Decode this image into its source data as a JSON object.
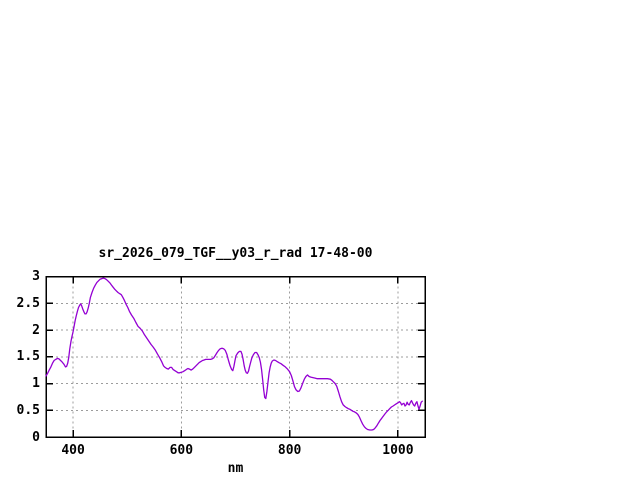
{
  "page": {
    "background_color": "#ffffff",
    "text_color": "#000000"
  },
  "chart_data": {
    "type": "line",
    "title": "sr_2026_079_TGF__y03_r_rad 17-48-00",
    "xlabel": "nm",
    "ylabel": "",
    "xlim": [
      350,
      1050
    ],
    "ylim": [
      0,
      3
    ],
    "x_ticks": [
      400,
      600,
      800,
      1000
    ],
    "y_ticks": [
      0,
      0.5,
      1,
      1.5,
      2,
      2.5,
      3
    ],
    "grid": true,
    "legend_position": "none",
    "colors": {
      "line": "#9400d3",
      "grid": "#9c9c9c",
      "border": "#000000",
      "background": "#ffffff"
    },
    "series": [
      {
        "name": "sr_2026_079_TGF__y03_r_rad",
        "color": "#9400d3",
        "points": [
          [
            350,
            1.14
          ],
          [
            353,
            1.19
          ],
          [
            356,
            1.25
          ],
          [
            359,
            1.31
          ],
          [
            362,
            1.38
          ],
          [
            365,
            1.43
          ],
          [
            368,
            1.45
          ],
          [
            371,
            1.47
          ],
          [
            374,
            1.46
          ],
          [
            377,
            1.43
          ],
          [
            380,
            1.4
          ],
          [
            383,
            1.36
          ],
          [
            386,
            1.31
          ],
          [
            388,
            1.32
          ],
          [
            390,
            1.38
          ],
          [
            392,
            1.48
          ],
          [
            394,
            1.65
          ],
          [
            396,
            1.78
          ],
          [
            398,
            1.88
          ],
          [
            400,
            1.97
          ],
          [
            402,
            2.08
          ],
          [
            404,
            2.18
          ],
          [
            406,
            2.27
          ],
          [
            408,
            2.35
          ],
          [
            410,
            2.42
          ],
          [
            412,
            2.46
          ],
          [
            414,
            2.49
          ],
          [
            416,
            2.45
          ],
          [
            418,
            2.39
          ],
          [
            420,
            2.34
          ],
          [
            422,
            2.3
          ],
          [
            424,
            2.3
          ],
          [
            426,
            2.34
          ],
          [
            428,
            2.41
          ],
          [
            430,
            2.5
          ],
          [
            432,
            2.61
          ],
          [
            435,
            2.7
          ],
          [
            438,
            2.78
          ],
          [
            441,
            2.84
          ],
          [
            444,
            2.89
          ],
          [
            447,
            2.92
          ],
          [
            450,
            2.95
          ],
          [
            453,
            2.96
          ],
          [
            456,
            2.97
          ],
          [
            459,
            2.96
          ],
          [
            462,
            2.94
          ],
          [
            465,
            2.91
          ],
          [
            468,
            2.88
          ],
          [
            471,
            2.84
          ],
          [
            474,
            2.8
          ],
          [
            477,
            2.76
          ],
          [
            480,
            2.73
          ],
          [
            483,
            2.7
          ],
          [
            486,
            2.68
          ],
          [
            489,
            2.66
          ],
          [
            492,
            2.61
          ],
          [
            495,
            2.55
          ],
          [
            498,
            2.48
          ],
          [
            501,
            2.42
          ],
          [
            504,
            2.35
          ],
          [
            508,
            2.28
          ],
          [
            512,
            2.22
          ],
          [
            516,
            2.14
          ],
          [
            520,
            2.07
          ],
          [
            524,
            2.03
          ],
          [
            528,
            1.98
          ],
          [
            532,
            1.91
          ],
          [
            536,
            1.85
          ],
          [
            540,
            1.79
          ],
          [
            544,
            1.73
          ],
          [
            548,
            1.68
          ],
          [
            552,
            1.62
          ],
          [
            556,
            1.55
          ],
          [
            560,
            1.48
          ],
          [
            564,
            1.4
          ],
          [
            567,
            1.33
          ],
          [
            570,
            1.3
          ],
          [
            573,
            1.28
          ],
          [
            576,
            1.27
          ],
          [
            579,
            1.3
          ],
          [
            582,
            1.3
          ],
          [
            585,
            1.26
          ],
          [
            588,
            1.24
          ],
          [
            591,
            1.22
          ],
          [
            594,
            1.2
          ],
          [
            597,
            1.2
          ],
          [
            600,
            1.21
          ],
          [
            603,
            1.22
          ],
          [
            606,
            1.24
          ],
          [
            609,
            1.26
          ],
          [
            612,
            1.28
          ],
          [
            615,
            1.27
          ],
          [
            618,
            1.25
          ],
          [
            621,
            1.27
          ],
          [
            624,
            1.3
          ],
          [
            627,
            1.33
          ],
          [
            630,
            1.36
          ],
          [
            633,
            1.39
          ],
          [
            636,
            1.41
          ],
          [
            639,
            1.43
          ],
          [
            642,
            1.44
          ],
          [
            645,
            1.45
          ],
          [
            648,
            1.45
          ],
          [
            651,
            1.45
          ],
          [
            654,
            1.45
          ],
          [
            657,
            1.46
          ],
          [
            660,
            1.48
          ],
          [
            663,
            1.53
          ],
          [
            666,
            1.58
          ],
          [
            669,
            1.62
          ],
          [
            672,
            1.65
          ],
          [
            675,
            1.66
          ],
          [
            678,
            1.65
          ],
          [
            681,
            1.62
          ],
          [
            684,
            1.55
          ],
          [
            687,
            1.43
          ],
          [
            690,
            1.33
          ],
          [
            693,
            1.26
          ],
          [
            695,
            1.24
          ],
          [
            697,
            1.32
          ],
          [
            699,
            1.43
          ],
          [
            701,
            1.52
          ],
          [
            704,
            1.57
          ],
          [
            707,
            1.6
          ],
          [
            710,
            1.6
          ],
          [
            712,
            1.55
          ],
          [
            714,
            1.45
          ],
          [
            716,
            1.33
          ],
          [
            718,
            1.25
          ],
          [
            720,
            1.2
          ],
          [
            722,
            1.19
          ],
          [
            724,
            1.23
          ],
          [
            726,
            1.32
          ],
          [
            728,
            1.4
          ],
          [
            730,
            1.47
          ],
          [
            733,
            1.54
          ],
          [
            736,
            1.58
          ],
          [
            739,
            1.58
          ],
          [
            742,
            1.53
          ],
          [
            744,
            1.48
          ],
          [
            746,
            1.4
          ],
          [
            748,
            1.27
          ],
          [
            750,
            1.08
          ],
          [
            752,
            0.88
          ],
          [
            754,
            0.74
          ],
          [
            756,
            0.72
          ],
          [
            758,
            0.85
          ],
          [
            760,
            1.03
          ],
          [
            762,
            1.2
          ],
          [
            764,
            1.31
          ],
          [
            766,
            1.38
          ],
          [
            768,
            1.42
          ],
          [
            771,
            1.44
          ],
          [
            774,
            1.43
          ],
          [
            777,
            1.41
          ],
          [
            780,
            1.39
          ],
          [
            784,
            1.37
          ],
          [
            788,
            1.34
          ],
          [
            792,
            1.31
          ],
          [
            796,
            1.27
          ],
          [
            800,
            1.22
          ],
          [
            803,
            1.15
          ],
          [
            806,
            1.05
          ],
          [
            809,
            0.94
          ],
          [
            812,
            0.88
          ],
          [
            815,
            0.85
          ],
          [
            818,
            0.86
          ],
          [
            821,
            0.92
          ],
          [
            824,
            1.0
          ],
          [
            827,
            1.08
          ],
          [
            830,
            1.13
          ],
          [
            833,
            1.16
          ],
          [
            836,
            1.13
          ],
          [
            839,
            1.12
          ],
          [
            843,
            1.11
          ],
          [
            847,
            1.1
          ],
          [
            851,
            1.09
          ],
          [
            855,
            1.09
          ],
          [
            860,
            1.09
          ],
          [
            865,
            1.09
          ],
          [
            870,
            1.09
          ],
          [
            875,
            1.08
          ],
          [
            878,
            1.06
          ],
          [
            881,
            1.03
          ],
          [
            884,
            1.0
          ],
          [
            887,
            0.95
          ],
          [
            890,
            0.85
          ],
          [
            893,
            0.75
          ],
          [
            896,
            0.66
          ],
          [
            899,
            0.6
          ],
          [
            902,
            0.57
          ],
          [
            905,
            0.55
          ],
          [
            908,
            0.53
          ],
          [
            911,
            0.52
          ],
          [
            914,
            0.5
          ],
          [
            917,
            0.48
          ],
          [
            920,
            0.47
          ],
          [
            923,
            0.45
          ],
          [
            926,
            0.42
          ],
          [
            929,
            0.37
          ],
          [
            932,
            0.3
          ],
          [
            935,
            0.24
          ],
          [
            938,
            0.19
          ],
          [
            941,
            0.16
          ],
          [
            944,
            0.14
          ],
          [
            948,
            0.13
          ],
          [
            952,
            0.13
          ],
          [
            955,
            0.14
          ],
          [
            958,
            0.17
          ],
          [
            961,
            0.21
          ],
          [
            964,
            0.26
          ],
          [
            967,
            0.31
          ],
          [
            970,
            0.35
          ],
          [
            973,
            0.39
          ],
          [
            976,
            0.43
          ],
          [
            979,
            0.47
          ],
          [
            982,
            0.5
          ],
          [
            985,
            0.53
          ],
          [
            988,
            0.56
          ],
          [
            991,
            0.58
          ],
          [
            994,
            0.6
          ],
          [
            997,
            0.62
          ],
          [
            1000,
            0.64
          ],
          [
            1003,
            0.66
          ],
          [
            1005,
            0.64
          ],
          [
            1007,
            0.6
          ],
          [
            1009,
            0.62
          ],
          [
            1011,
            0.63
          ],
          [
            1013,
            0.58
          ],
          [
            1015,
            0.6
          ],
          [
            1017,
            0.65
          ],
          [
            1019,
            0.61
          ],
          [
            1021,
            0.6
          ],
          [
            1023,
            0.65
          ],
          [
            1025,
            0.68
          ],
          [
            1027,
            0.64
          ],
          [
            1029,
            0.6
          ],
          [
            1031,
            0.58
          ],
          [
            1033,
            0.63
          ],
          [
            1035,
            0.66
          ],
          [
            1037,
            0.58
          ],
          [
            1039,
            0.52
          ],
          [
            1041,
            0.58
          ],
          [
            1043,
            0.65
          ],
          [
            1045,
            0.67
          ]
        ]
      }
    ]
  }
}
